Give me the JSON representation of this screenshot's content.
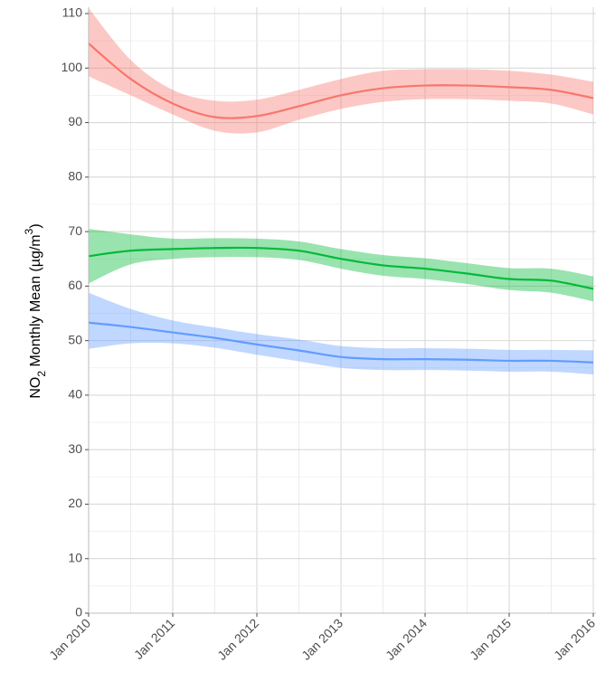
{
  "chart_data": {
    "type": "line",
    "title": "",
    "xlabel": "",
    "ylabel": {
      "prefix": "NO",
      "sub": "2",
      "middle": " Monthly Mean (µg/m",
      "sup": "3",
      "suffix": ")"
    },
    "ylim": [
      0,
      110
    ],
    "yticks": [
      0,
      10,
      20,
      30,
      40,
      50,
      60,
      70,
      80,
      90,
      100,
      110
    ],
    "xlim": [
      "2010-01",
      "2016-01"
    ],
    "xticks": [
      "Jan 2010",
      "Jan 2011",
      "Jan 2012",
      "Jan 2013",
      "Jan 2014",
      "Jan 2015",
      "Jan 2016"
    ],
    "grid": true,
    "legend": "none",
    "x": [
      "2010-01",
      "2010-07",
      "2011-01",
      "2011-07",
      "2012-01",
      "2012-07",
      "2013-01",
      "2013-07",
      "2014-01",
      "2014-07",
      "2015-01",
      "2015-07",
      "2016-01"
    ],
    "series": [
      {
        "color": "#f8766d",
        "band_color": "#f8766d",
        "values": [
          104.5,
          98,
          93.5,
          91,
          91.2,
          93,
          95,
          96.3,
          96.8,
          96.8,
          96.5,
          96,
          94.5
        ],
        "lower": [
          98.5,
          95,
          91.5,
          88.5,
          88.2,
          90.5,
          92.5,
          93.8,
          94.3,
          94.3,
          94,
          93.5,
          91.5
        ],
        "upper": [
          111,
          101.5,
          96,
          94,
          94.2,
          96,
          98,
          99.5,
          99.8,
          99.8,
          99.5,
          98.8,
          97.5
        ]
      },
      {
        "color": "#00ba38",
        "band_color": "#00ba38",
        "values": [
          65.5,
          66.5,
          66.8,
          67,
          67,
          66.5,
          65,
          63.8,
          63.2,
          62.3,
          61.3,
          61,
          59.5
        ],
        "lower": [
          60.5,
          64,
          65,
          65.3,
          65.3,
          64.8,
          63.2,
          61.9,
          61.3,
          60.4,
          59.3,
          58.8,
          57.2
        ],
        "upper": [
          70.5,
          69.5,
          68.7,
          68.8,
          68.7,
          68.2,
          66.8,
          65.7,
          65.1,
          64.2,
          63.3,
          63.2,
          61.8
        ]
      },
      {
        "color": "#619cff",
        "band_color": "#619cff",
        "values": [
          53.3,
          52.5,
          51.5,
          50.5,
          49.3,
          48.2,
          47,
          46.6,
          46.6,
          46.5,
          46.3,
          46.3,
          46
        ],
        "lower": [
          48.5,
          49.5,
          49.5,
          48.7,
          47.4,
          46.2,
          45,
          44.6,
          44.6,
          44.5,
          44.3,
          44.3,
          43.8
        ],
        "upper": [
          58.8,
          55.8,
          53.7,
          52.4,
          51.2,
          50.2,
          49,
          48.6,
          48.6,
          48.5,
          48.3,
          48.3,
          48.2
        ]
      }
    ]
  }
}
